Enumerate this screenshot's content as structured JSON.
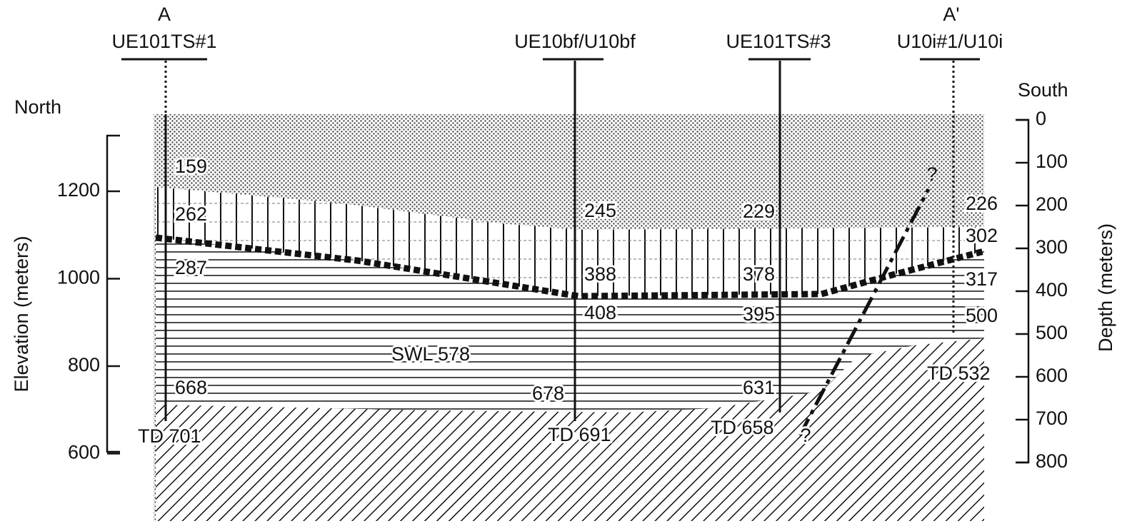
{
  "section": {
    "start_label": "A",
    "end_label": "A'",
    "north": "North",
    "south": "South"
  },
  "wells": [
    {
      "name": "UE101TS#1",
      "td": "TD 701"
    },
    {
      "name": "UE10bf/U10bf",
      "td": "TD 691"
    },
    {
      "name": "UE101TS#3",
      "td": "TD 658"
    },
    {
      "name": "U10i#1/U10i",
      "td": "TD 532"
    }
  ],
  "elevation_axis": {
    "label": "Elevation (meters)",
    "ticks": [
      600,
      800,
      1000,
      1200
    ]
  },
  "depth_axis": {
    "label": "Depth (meters)",
    "ticks": [
      0,
      100,
      200,
      300,
      400,
      500,
      600,
      700,
      800
    ]
  },
  "annotations": [
    159,
    262,
    287,
    668,
    245,
    388,
    408,
    678,
    229,
    378,
    395,
    631,
    226,
    302,
    317,
    500
  ],
  "swl": "SWL 578",
  "fault_queries": [
    "?",
    "?"
  ]
}
